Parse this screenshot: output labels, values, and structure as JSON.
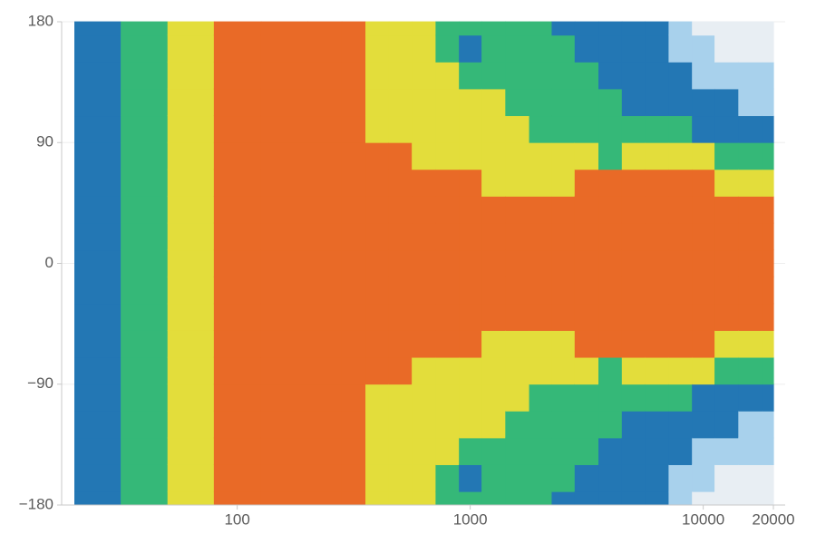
{
  "chart_data": {
    "type": "contour",
    "x": [
      25,
      40,
      63,
      100,
      160,
      250,
      315,
      400,
      500,
      630,
      800,
      1000,
      1250,
      1600,
      2000,
      2500,
      3150,
      4000,
      5000,
      6300,
      8000,
      10000,
      12500,
      16000,
      20000
    ],
    "y": [
      -180,
      -160,
      -140,
      -120,
      -100,
      -80,
      -60,
      -40,
      -20,
      0,
      20,
      40,
      60,
      80,
      100,
      120,
      140,
      160,
      180
    ],
    "z": [
      [
        2,
        2,
        2,
        2,
        2,
        2,
        2,
        2,
        2,
        2,
        2,
        2,
        2,
        2,
        2,
        2,
        2,
        2,
        2
      ],
      [
        3,
        3,
        3,
        3,
        3,
        3,
        3,
        3,
        3,
        3,
        3,
        3,
        3,
        3,
        3,
        3,
        3,
        3,
        3
      ],
      [
        4,
        4,
        4,
        4,
        4,
        4,
        4,
        4,
        4,
        4,
        4,
        4,
        4,
        4,
        4,
        4,
        4,
        4,
        4
      ],
      [
        5,
        5,
        5,
        5,
        5,
        5,
        5,
        5,
        5,
        5,
        5,
        5,
        5,
        5,
        5,
        5,
        5,
        5,
        5
      ],
      [
        5,
        5,
        5,
        5,
        5,
        5,
        5,
        5,
        5,
        5,
        5,
        5,
        5,
        5,
        5,
        5,
        5,
        5,
        5
      ],
      [
        5,
        5,
        5,
        5,
        5,
        5,
        5,
        5,
        5,
        5,
        5,
        5,
        5,
        5,
        5,
        5,
        5,
        5,
        5
      ],
      [
        5,
        5,
        5,
        5,
        5,
        5,
        5,
        5,
        5,
        5,
        5,
        5,
        5,
        5,
        5,
        5,
        5,
        5,
        5
      ],
      [
        4,
        4,
        4,
        4,
        4,
        5,
        5,
        5,
        5,
        5,
        5,
        5,
        5,
        5,
        4,
        4,
        4,
        4,
        4
      ],
      [
        4,
        4,
        4,
        4,
        4,
        5,
        5,
        5,
        5,
        5,
        5,
        5,
        5,
        5,
        4,
        4,
        4,
        4,
        4
      ],
      [
        4,
        4,
        4,
        4,
        4,
        4,
        5,
        5,
        5,
        5,
        5,
        5,
        5,
        4,
        4,
        4,
        4,
        4,
        4
      ],
      [
        3,
        3,
        4,
        4,
        4,
        4,
        5,
        5,
        5,
        5,
        5,
        5,
        5,
        4,
        4,
        4,
        4,
        3,
        3
      ],
      [
        3,
        2,
        3,
        4,
        4,
        4,
        5,
        5,
        5,
        5,
        5,
        5,
        5,
        4,
        4,
        4,
        3,
        2,
        3
      ],
      [
        3,
        3,
        3,
        4,
        4,
        4,
        4,
        5,
        5,
        5,
        5,
        5,
        4,
        4,
        4,
        4,
        3,
        3,
        3
      ],
      [
        3,
        3,
        3,
        3,
        4,
        4,
        4,
        5,
        5,
        5,
        5,
        5,
        4,
        4,
        4,
        3,
        3,
        3,
        3
      ],
      [
        3,
        3,
        3,
        3,
        3,
        4,
        4,
        5,
        5,
        5,
        5,
        5,
        4,
        4,
        3,
        3,
        3,
        3,
        3
      ],
      [
        2,
        3,
        3,
        3,
        3,
        4,
        4,
        5,
        5,
        5,
        5,
        5,
        4,
        4,
        3,
        3,
        3,
        3,
        2
      ],
      [
        2,
        2,
        3,
        3,
        3,
        4,
        5,
        5,
        5,
        5,
        5,
        5,
        5,
        4,
        3,
        3,
        3,
        2,
        2
      ],
      [
        2,
        2,
        2,
        3,
        3,
        3,
        5,
        5,
        5,
        5,
        5,
        5,
        5,
        3,
        3,
        3,
        2,
        2,
        2
      ],
      [
        2,
        2,
        2,
        2,
        3,
        4,
        5,
        5,
        5,
        5,
        5,
        5,
        5,
        4,
        3,
        2,
        2,
        2,
        2
      ],
      [
        2,
        2,
        2,
        2,
        3,
        4,
        5,
        5,
        5,
        5,
        5,
        5,
        5,
        4,
        3,
        2,
        2,
        2,
        2
      ],
      [
        1,
        1,
        2,
        2,
        3,
        4,
        5,
        5,
        5,
        5,
        5,
        5,
        5,
        4,
        3,
        2,
        2,
        1,
        1
      ],
      [
        0,
        1,
        1,
        2,
        2,
        4,
        5,
        5,
        5,
        5,
        5,
        5,
        5,
        4,
        2,
        2,
        1,
        1,
        0
      ],
      [
        0,
        0,
        1,
        2,
        2,
        3,
        4,
        5,
        5,
        5,
        5,
        5,
        4,
        3,
        2,
        2,
        1,
        0,
        0
      ],
      [
        0,
        0,
        1,
        1,
        2,
        3,
        4,
        5,
        5,
        5,
        5,
        5,
        4,
        3,
        2,
        1,
        1,
        0,
        0
      ],
      [
        0,
        0,
        1,
        1,
        2,
        3,
        4,
        5,
        5,
        5,
        5,
        5,
        4,
        3,
        2,
        1,
        1,
        0,
        0
      ]
    ],
    "colors": [
      "#e8eef3",
      "#a8d1ec",
      "#2377b4",
      "#35b878",
      "#e3dd3b",
      "#e96a27"
    ],
    "xlog": true,
    "xlim": [
      20,
      20000
    ],
    "ylim": [
      -180,
      180
    ],
    "xticks": [
      100,
      1000,
      10000,
      20000
    ],
    "yticks": [
      {
        "value": -180,
        "label": "−180"
      },
      {
        "value": -90,
        "label": "−90"
      },
      0,
      90,
      180
    ],
    "grid": true
  }
}
